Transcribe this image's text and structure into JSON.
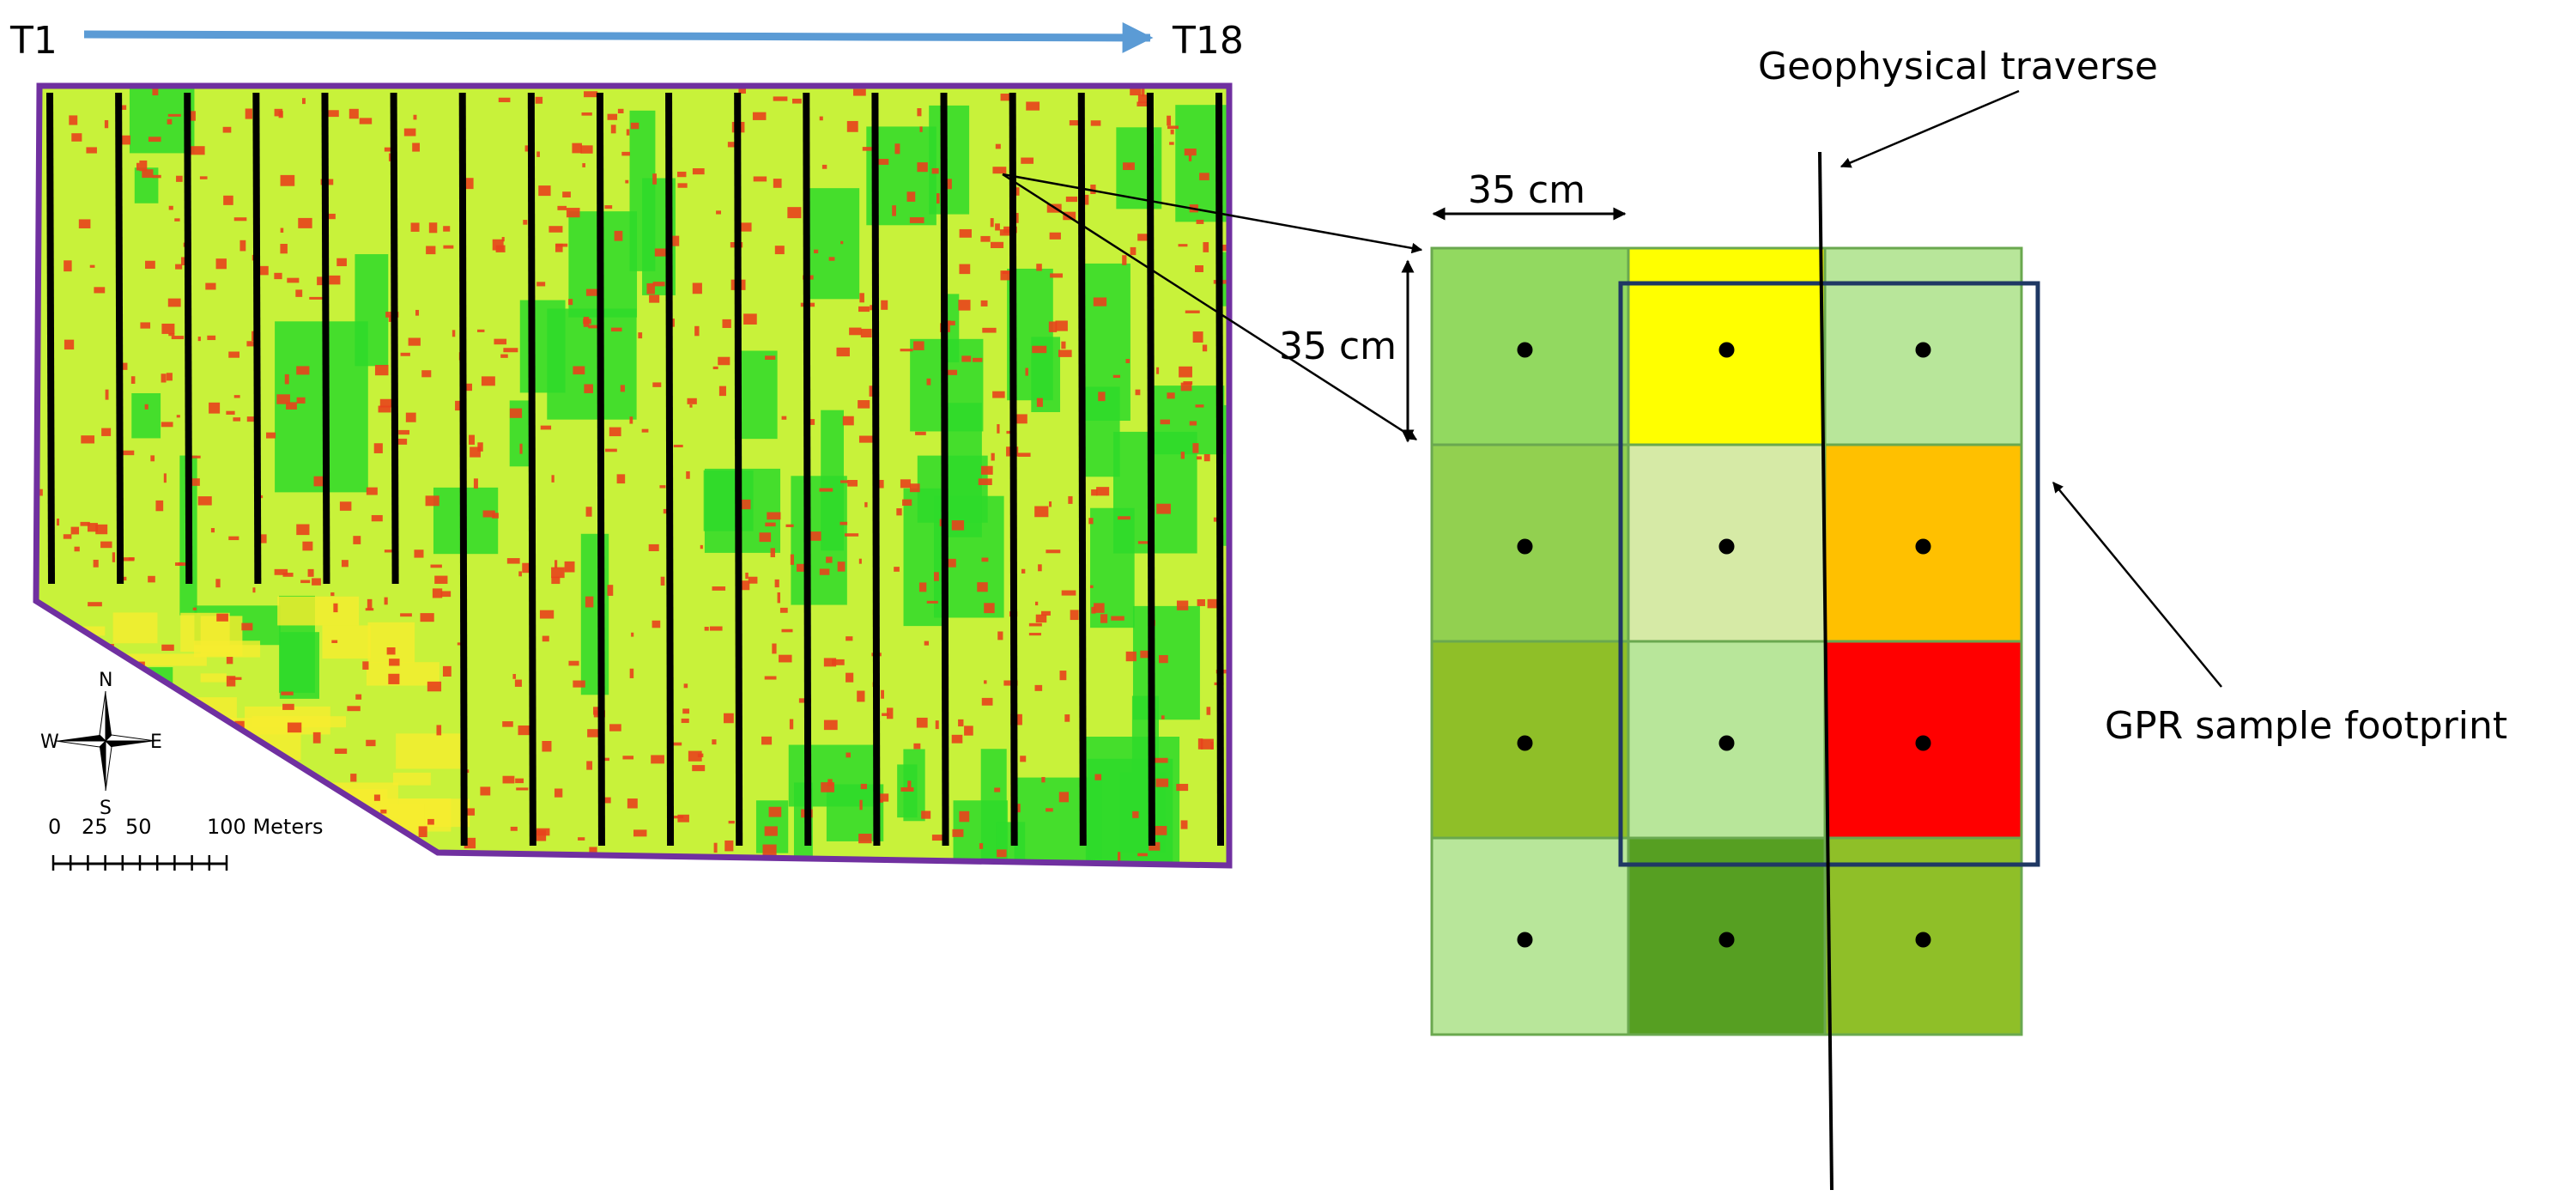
{
  "transect_labels": {
    "start": "T1",
    "end": "T18"
  },
  "field_map": {
    "transect_count": 18,
    "boundary_color": "#7030a0",
    "colors": {
      "high": "#2edb2a",
      "mid": "#c8f23a",
      "low": "#f6ec30",
      "hot": "#e8421c"
    }
  },
  "compass": {
    "north": "N",
    "south": "S",
    "east": "E",
    "west": "W"
  },
  "scale_bar": {
    "labels": [
      "0",
      "25",
      "50",
      "100 Meters"
    ]
  },
  "grid": {
    "dimension_horizontal": "35 cm",
    "dimension_vertical": "35 cm",
    "cell_colors": [
      [
        "#92d960",
        "#ffff00",
        "#b8e69a"
      ],
      [
        "#92d050",
        "#d6eaa6",
        "#ffc000"
      ],
      [
        "#8fbf28",
        "#b8e69a",
        "#ff0000"
      ],
      [
        "#b8e69a",
        "#569f22",
        "#8fbf28"
      ]
    ],
    "footprint_color": "#1f3864"
  },
  "annotations": {
    "traverse_label": "Geophysical traverse",
    "footprint_label": "GPR sample footprint"
  }
}
